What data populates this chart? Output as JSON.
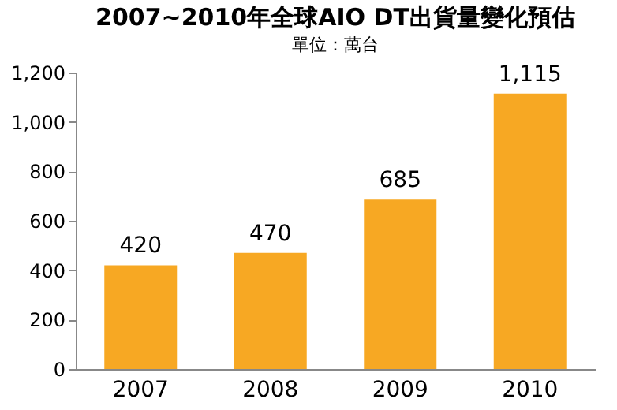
{
  "chart_data": {
    "type": "bar",
    "title": "2007~2010年全球AIO DT出貨量變化預估",
    "subtitle": "單位：萬台",
    "categories": [
      "2007",
      "2008",
      "2009",
      "2010"
    ],
    "values": [
      420,
      470,
      685,
      1115
    ],
    "color": "#f7a823",
    "value_labels": [
      "420",
      "470",
      "685",
      "1,115"
    ],
    "ylim": [
      0,
      1200
    ],
    "yticks": [
      0,
      200,
      400,
      600,
      800,
      {
        "value": 1000,
        "label": "1,000"
      },
      {
        "value": 1200,
        "label": "1,200"
      }
    ],
    "grid": false
  }
}
